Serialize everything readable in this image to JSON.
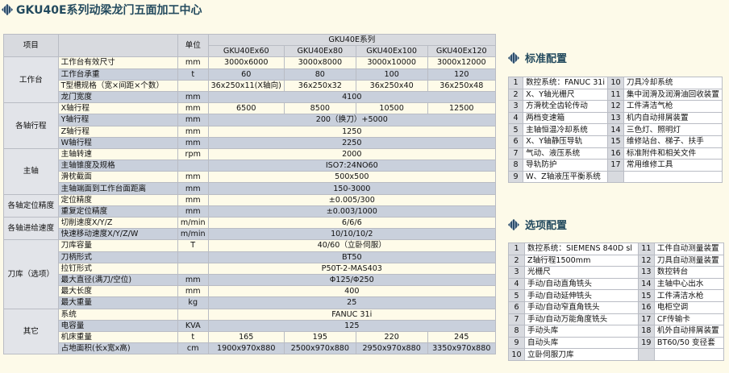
{
  "title": "GKU40E系列动梁龙门五面加工中心",
  "spec": {
    "header": {
      "item": "项目",
      "unit": "单位",
      "series": "GKU40E系列",
      "models": [
        "GKU40Ex60",
        "GKU40Ex80",
        "GKU40Ex100",
        "GKU40Ex120"
      ]
    },
    "groups": [
      {
        "name": "工作台",
        "rows": [
          {
            "item": "工作台有效尺寸",
            "unit": "mm",
            "values": [
              "3000x6000",
              "3000x8000",
              "3000x10000",
              "3000x12000"
            ]
          },
          {
            "item": "工作台承重",
            "unit": "t",
            "values": [
              "60",
              "80",
              "100",
              "120"
            ]
          },
          {
            "item": "T型槽规格（宽×间距×个数）",
            "unit": "",
            "values": [
              "36x250x11(X轴向)",
              "36x250x32",
              "36x250x40",
              "36x250x48"
            ]
          },
          {
            "item": "龙门宽度",
            "unit": "mm",
            "values": [
              "4100"
            ]
          }
        ]
      },
      {
        "name": "各轴行程",
        "rows": [
          {
            "item": "X轴行程",
            "unit": "mm",
            "values": [
              "6500",
              "8500",
              "10500",
              "12500"
            ]
          },
          {
            "item": "Y轴行程",
            "unit": "mm",
            "values": [
              "200（换刀）+5000"
            ]
          },
          {
            "item": "Z轴行程",
            "unit": "mm",
            "values": [
              "1250"
            ]
          },
          {
            "item": "W轴行程",
            "unit": "mm",
            "values": [
              "2250"
            ]
          }
        ]
      },
      {
        "name": "主轴",
        "rows": [
          {
            "item": "主轴转速",
            "unit": "rpm",
            "values": [
              "2000"
            ]
          },
          {
            "item": "主轴锥度及规格",
            "unit": "",
            "values": [
              "ISO7:24NO60"
            ]
          },
          {
            "item": "滑枕截面",
            "unit": "mm",
            "values": [
              "500x500"
            ]
          },
          {
            "item": "主轴端面到工作台面距离",
            "unit": "mm",
            "values": [
              "150-3000"
            ]
          }
        ]
      },
      {
        "name": "各轴定位精度",
        "rows": [
          {
            "item": "定位精度",
            "unit": "mm",
            "values": [
              "±0.005/300"
            ]
          },
          {
            "item": "重复定位精度",
            "unit": "mm",
            "values": [
              "±0.003/1000"
            ]
          }
        ]
      },
      {
        "name": "各轴进给速度",
        "rows": [
          {
            "item": "切削速度X/Y/Z",
            "unit": "m/min",
            "values": [
              "6/6/6"
            ]
          },
          {
            "item": "快速移动速度X/Y/Z/W",
            "unit": "m/min",
            "values": [
              "10/10/10/2"
            ]
          }
        ]
      },
      {
        "name": "刀库（选项）",
        "rows": [
          {
            "item": "刀库容量",
            "unit": "T",
            "values": [
              "40/60（立卧伺服）"
            ]
          },
          {
            "item": "刀柄形式",
            "unit": "",
            "values": [
              "BT50"
            ]
          },
          {
            "item": "拉钉形式",
            "unit": "",
            "values": [
              "P50T-2-MAS403"
            ]
          },
          {
            "item": "最大直径(满刀/空位)",
            "unit": "mm",
            "values": [
              "Φ125/Φ250"
            ]
          },
          {
            "item": "最大长度",
            "unit": "mm",
            "values": [
              "400"
            ]
          },
          {
            "item": "最大重量",
            "unit": "kg",
            "values": [
              "25"
            ]
          }
        ]
      },
      {
        "name": "其它",
        "rows": [
          {
            "item": "系统",
            "unit": "",
            "values": [
              "FANUC 31i"
            ]
          },
          {
            "item": "电容量",
            "unit": "KVA",
            "values": [
              "125"
            ]
          },
          {
            "item": "机床重量",
            "unit": "t",
            "values": [
              "165",
              "195",
              "220",
              "245"
            ]
          },
          {
            "item": "占地面积(长x宽x高)",
            "unit": "cm",
            "values": [
              "1900x970x880",
              "2500x970x880",
              "2950x970x880",
              "3350x970x880"
            ]
          }
        ]
      }
    ]
  },
  "standard": {
    "title": "标准配置",
    "left": [
      [
        "1",
        "数控系统：FANUC 31i"
      ],
      [
        "2",
        "X、Y轴光栅尺"
      ],
      [
        "3",
        "方滑枕全齿轮传动"
      ],
      [
        "4",
        "两档变速箱"
      ],
      [
        "5",
        "主轴恒温冷却系统"
      ],
      [
        "6",
        "X、Y轴静压导轨"
      ],
      [
        "7",
        "气动、液压系统"
      ],
      [
        "8",
        "导轨防护"
      ],
      [
        "9",
        "W、Z轴液压平衡系统"
      ]
    ],
    "right": [
      [
        "10",
        "刀具冷却系统"
      ],
      [
        "11",
        "集中润滑及润滑油回收装置"
      ],
      [
        "12",
        "工件清洁气枪"
      ],
      [
        "13",
        "机内自动排屑装置"
      ],
      [
        "14",
        "三色灯、照明灯"
      ],
      [
        "15",
        "维修站台、梯子、扶手"
      ],
      [
        "16",
        "标准附件和相关文件"
      ],
      [
        "17",
        "常用维修工具"
      ]
    ]
  },
  "options": {
    "title": "选项配置",
    "left": [
      [
        "1",
        "数控系统：SIEMENS 840D sl"
      ],
      [
        "2",
        "Z轴行程1500mm"
      ],
      [
        "3",
        "光栅尺"
      ],
      [
        "4",
        "手动/自动直角铣头"
      ],
      [
        "5",
        "手动/自动延伸铣头"
      ],
      [
        "6",
        "手动/自动窄直角铣头"
      ],
      [
        "7",
        "手动/自动万能角度铣头"
      ],
      [
        "8",
        "手动头库"
      ],
      [
        "9",
        "自动头库"
      ],
      [
        "10",
        "立卧伺服刀库"
      ]
    ],
    "right": [
      [
        "11",
        "工件自动测量装置"
      ],
      [
        "12",
        "刀具自动测量装置"
      ],
      [
        "13",
        "数控转台"
      ],
      [
        "14",
        "主轴中心出水"
      ],
      [
        "15",
        "工件清洁水枪"
      ],
      [
        "16",
        "电柜空调"
      ],
      [
        "17",
        "CF传输卡"
      ],
      [
        "18",
        "机外自动排屑装置"
      ],
      [
        "19",
        "BT60/50 变径套"
      ]
    ]
  },
  "colors": {
    "title": "#234a5e",
    "background": "#fdfae9",
    "row_alt": "#c9d0dc",
    "header": "#d8dadf"
  }
}
